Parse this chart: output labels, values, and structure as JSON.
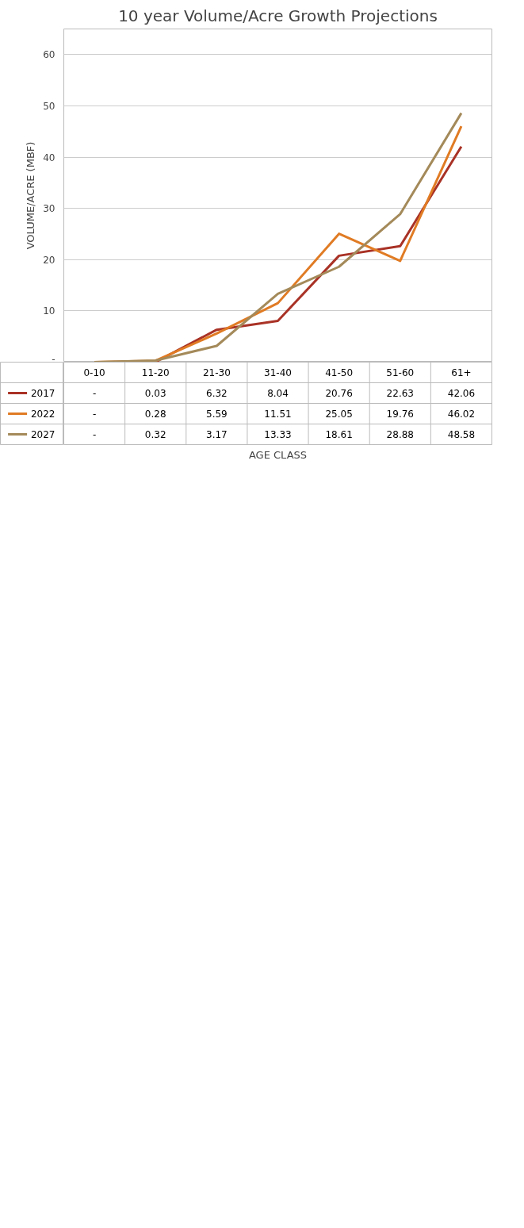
{
  "chart_data": {
    "type": "line",
    "title": "10 year Volume/Acre Growth Projections",
    "annotations": [
      "AGE CLASS"
    ],
    "ylabel": "VOLUME/ACRE (MBF)",
    "categories": [
      "0-10",
      "11-20",
      "21-30",
      "31-40",
      "41-50",
      "51-60",
      "61+"
    ],
    "series": [
      {
        "name": "2017",
        "color": "#a93226",
        "values": [
          0,
          0.03,
          6.32,
          8.04,
          20.76,
          22.63,
          42.06
        ],
        "value_labels": [
          "-",
          "0.03",
          "6.32",
          "8.04",
          "20.76",
          "22.63",
          "42.06"
        ]
      },
      {
        "name": "2022",
        "color": "#e07b24",
        "values": [
          0,
          0.28,
          5.59,
          11.51,
          25.05,
          19.76,
          46.02
        ],
        "value_labels": [
          "-",
          "0.28",
          "5.59",
          "11.51",
          "25.05",
          "19.76",
          "46.02"
        ]
      },
      {
        "name": "2027",
        "color": "#a48a5a",
        "values": [
          0,
          0.32,
          3.17,
          13.33,
          18.61,
          28.88,
          48.58
        ],
        "value_labels": [
          "-",
          "0.32",
          "3.17",
          "13.33",
          "18.61",
          "28.88",
          "48.58"
        ]
      }
    ],
    "ylim": [
      0,
      65
    ],
    "yticks": [
      {
        "value": 0,
        "label": "-"
      },
      10,
      20,
      30,
      40,
      50,
      60
    ],
    "grid": "y",
    "legend": "bottom",
    "tick_labels": "y"
  }
}
